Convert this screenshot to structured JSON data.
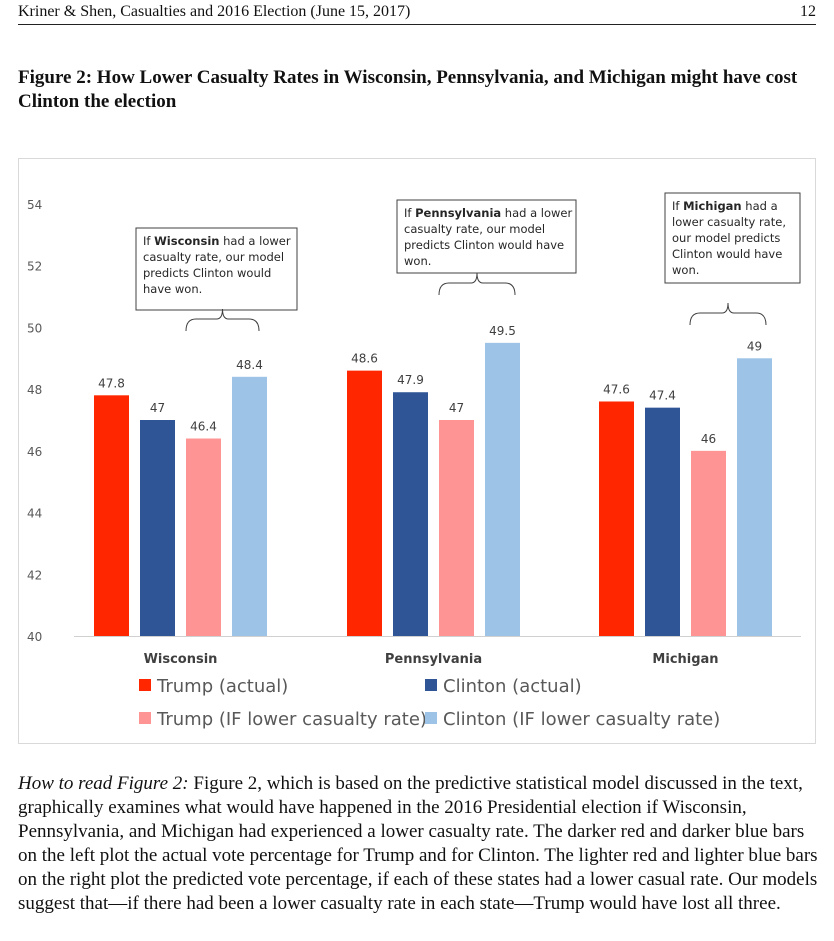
{
  "header": {
    "running_title": "Kriner & Shen, Casualties and 2016 Election (June 15, 2017)",
    "page_number": "12"
  },
  "figure": {
    "title": "Figure 2: How Lower Casualty Rates in Wisconsin, Pennsylvania, and Michigan might have cost Clinton the election"
  },
  "chart_data": {
    "type": "bar",
    "categories": [
      "Wisconsin",
      "Pennsylvania",
      "Michigan"
    ],
    "series": [
      {
        "name": "Trump (actual)",
        "color": "#ff2600",
        "values": [
          47.8,
          48.6,
          47.6
        ]
      },
      {
        "name": "Clinton (actual)",
        "color": "#2f5597",
        "values": [
          47,
          47.9,
          47.4
        ]
      },
      {
        "name": "Trump (IF lower casualty rate)",
        "color": "#ff9494",
        "values": [
          46.4,
          47,
          46
        ]
      },
      {
        "name": "Clinton (IF lower casualty rate)",
        "color": "#9dc3e6",
        "values": [
          48.4,
          49.5,
          49
        ]
      }
    ],
    "ylim": [
      40,
      54
    ],
    "yticks": [
      40,
      42,
      44,
      46,
      48,
      50,
      52,
      54
    ],
    "grid": false,
    "legend": "bottom",
    "annotations": [
      {
        "category": "Wisconsin",
        "bold": "Wisconsin",
        "lines": [
          [
            "If ",
            "Wisconsin",
            " had a lower"
          ],
          [
            "casualty rate, our model"
          ],
          [
            "predicts Clinton would"
          ],
          [
            "have won."
          ]
        ]
      },
      {
        "category": "Pennsylvania",
        "bold": "Pennsylvania",
        "lines": [
          [
            "If ",
            "Pennsylvania",
            " had a lower"
          ],
          [
            "casualty rate, our model"
          ],
          [
            "predicts Clinton would have"
          ],
          [
            "won."
          ]
        ]
      },
      {
        "category": "Michigan",
        "bold": "Michigan",
        "lines": [
          [
            "If ",
            "Michigan",
            " had a"
          ],
          [
            "lower casualty rate,"
          ],
          [
            "our model predicts"
          ],
          [
            "Clinton would have"
          ],
          [
            "won."
          ]
        ]
      }
    ]
  },
  "caption": {
    "lead": "How to read Figure 2:",
    "body": " Figure 2, which is based on the predictive statistical model discussed in the text, graphically examines what would have happened in the 2016 Presidential election if Wisconsin, Pennsylvania, and Michigan had experienced a lower casualty rate. The darker red and darker blue bars on the left plot the actual vote percentage for Trump and for Clinton. The lighter red and lighter blue bars on the right plot the predicted vote percentage, if each of these states had a lower casual rate. Our models suggest that—if there had been a lower casualty rate in each state—Trump would have lost all three."
  }
}
